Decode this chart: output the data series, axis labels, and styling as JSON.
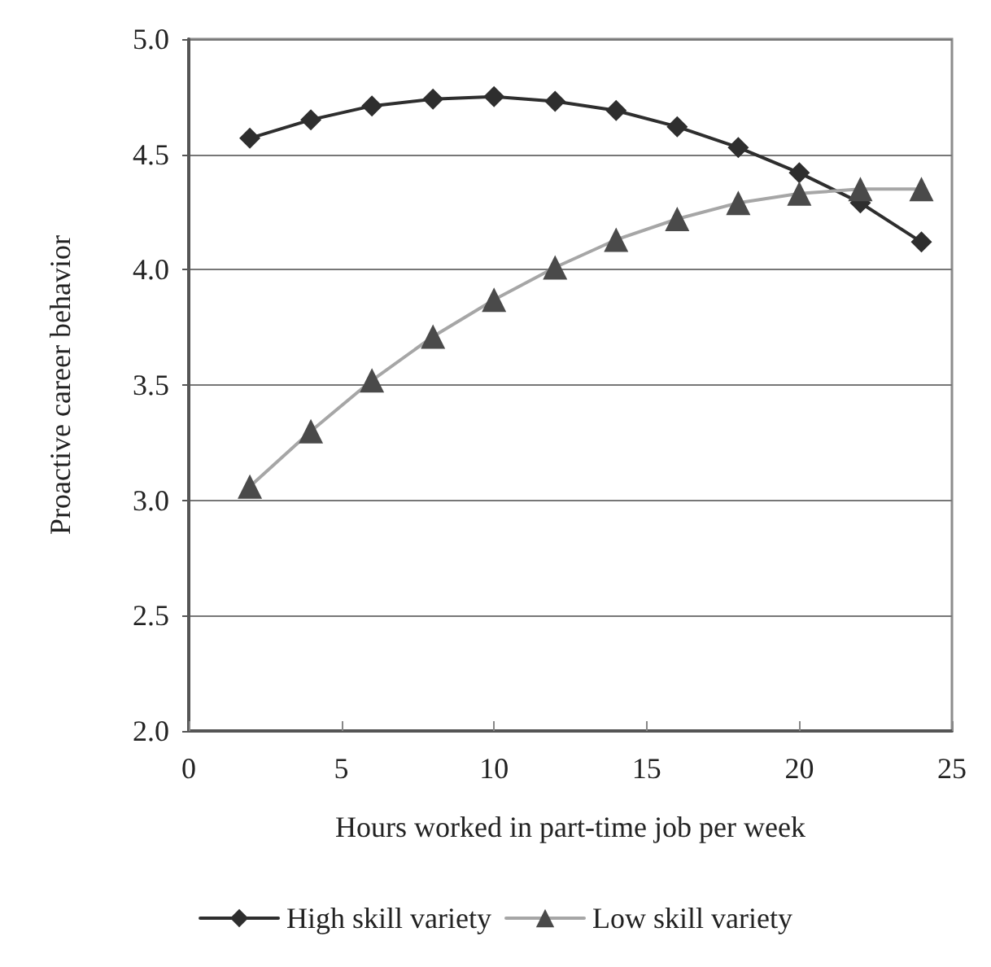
{
  "chart_data": {
    "type": "line",
    "xlabel": "Hours worked in part-time job per week",
    "ylabel": "Proactive career behavior",
    "x": [
      2,
      4,
      6,
      8,
      10,
      12,
      14,
      16,
      18,
      20,
      22,
      24
    ],
    "series": [
      {
        "name": "High skill variety",
        "color": "#2e2e2e",
        "marker": "diamond",
        "values": [
          4.57,
          4.65,
          4.71,
          4.74,
          4.75,
          4.73,
          4.69,
          4.62,
          4.53,
          4.42,
          4.29,
          4.12
        ]
      },
      {
        "name": "Low skill variety",
        "color": "#a6a6a6",
        "marker": "triangle",
        "values": [
          3.06,
          3.3,
          3.52,
          3.71,
          3.87,
          4.01,
          4.13,
          4.22,
          4.29,
          4.33,
          4.35,
          4.35
        ]
      }
    ],
    "xlim": [
      0,
      25
    ],
    "xticks": [
      0,
      5,
      10,
      15,
      20,
      25
    ],
    "ylim": [
      2.0,
      5.0
    ],
    "yticks": [
      {
        "value": 2,
        "label": "2.0"
      },
      2.5,
      {
        "value": 3,
        "label": "3.0"
      },
      3.5,
      {
        "value": 4,
        "label": "4.0"
      },
      4.5,
      {
        "value": 5,
        "label": "5.0"
      }
    ],
    "grid": "y",
    "legend": "bottom",
    "line_style": "solid"
  }
}
